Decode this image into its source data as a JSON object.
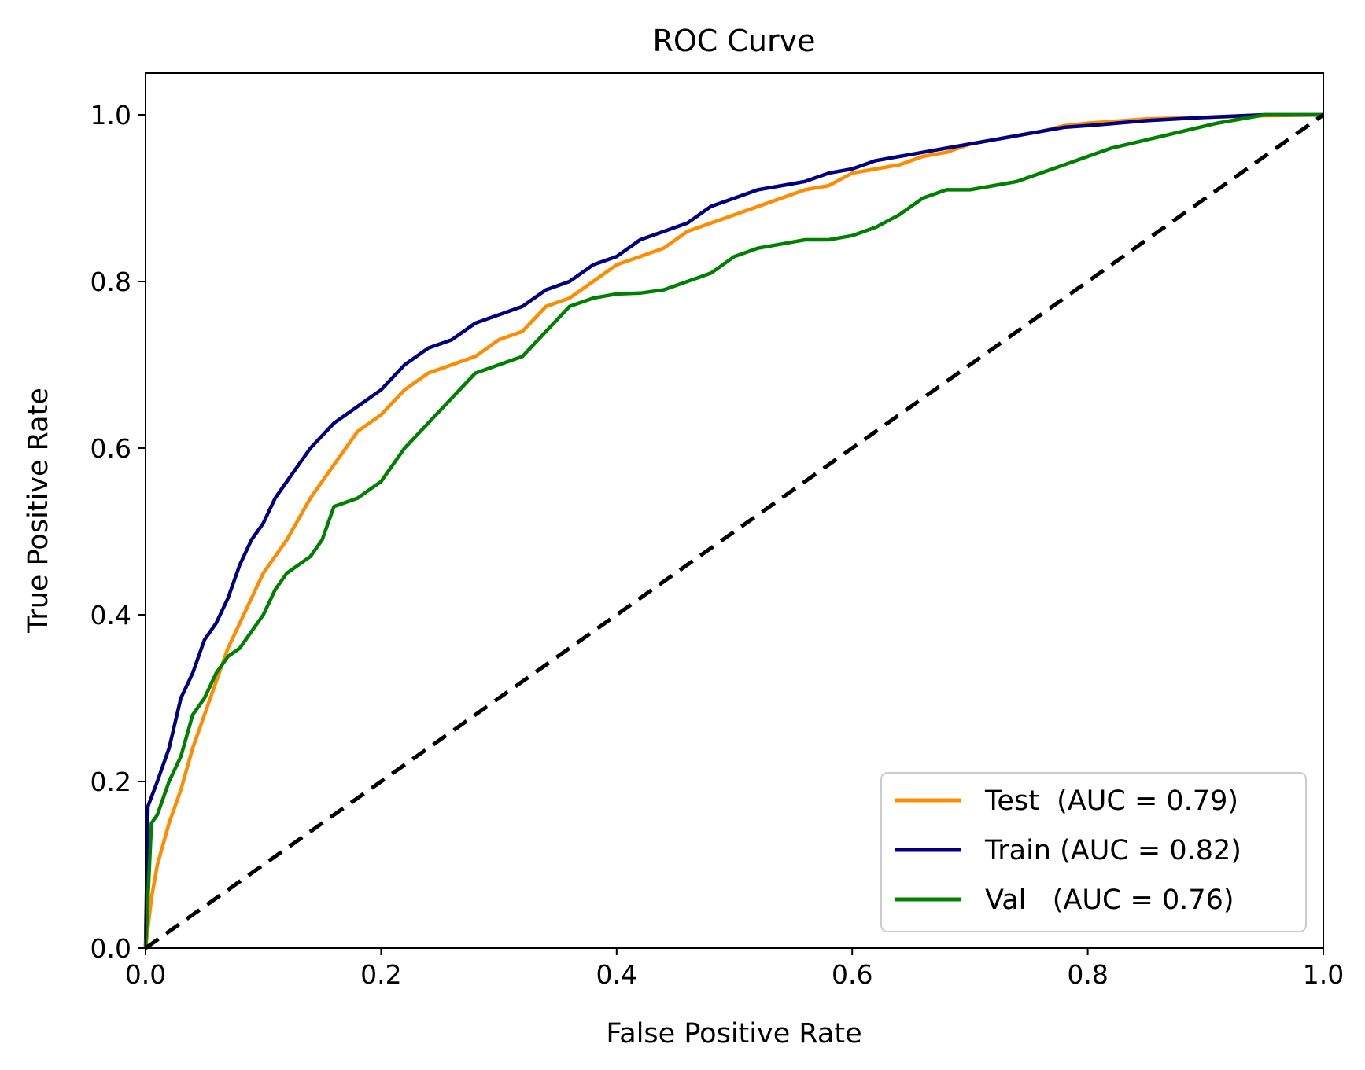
{
  "chart_data": {
    "type": "line",
    "title": "ROC Curve",
    "xlabel": "False Positive Rate",
    "ylabel": "True Positive Rate",
    "xlim": [
      0,
      1
    ],
    "ylim": [
      0,
      1.05
    ],
    "xticks": [
      "0.0",
      "0.2",
      "0.4",
      "0.6",
      "0.8",
      "1.0"
    ],
    "yticks": [
      "0.0",
      "0.2",
      "0.4",
      "0.6",
      "0.8",
      "1.0"
    ],
    "grid": false,
    "legend_position": "lower-right",
    "series": [
      {
        "name": "Test  (AUC = 0.79)",
        "color": "#ff8c00",
        "points": [
          [
            0,
            0
          ],
          [
            0.005,
            0.06
          ],
          [
            0.01,
            0.1
          ],
          [
            0.02,
            0.15
          ],
          [
            0.03,
            0.19
          ],
          [
            0.04,
            0.24
          ],
          [
            0.05,
            0.28
          ],
          [
            0.06,
            0.32
          ],
          [
            0.07,
            0.36
          ],
          [
            0.08,
            0.39
          ],
          [
            0.09,
            0.42
          ],
          [
            0.1,
            0.45
          ],
          [
            0.12,
            0.49
          ],
          [
            0.14,
            0.54
          ],
          [
            0.16,
            0.58
          ],
          [
            0.18,
            0.62
          ],
          [
            0.2,
            0.64
          ],
          [
            0.22,
            0.67
          ],
          [
            0.24,
            0.69
          ],
          [
            0.26,
            0.7
          ],
          [
            0.28,
            0.71
          ],
          [
            0.3,
            0.73
          ],
          [
            0.32,
            0.74
          ],
          [
            0.34,
            0.77
          ],
          [
            0.36,
            0.78
          ],
          [
            0.38,
            0.8
          ],
          [
            0.4,
            0.82
          ],
          [
            0.42,
            0.83
          ],
          [
            0.44,
            0.84
          ],
          [
            0.46,
            0.86
          ],
          [
            0.48,
            0.87
          ],
          [
            0.5,
            0.88
          ],
          [
            0.52,
            0.89
          ],
          [
            0.54,
            0.9
          ],
          [
            0.56,
            0.91
          ],
          [
            0.58,
            0.915
          ],
          [
            0.6,
            0.93
          ],
          [
            0.62,
            0.935
          ],
          [
            0.64,
            0.94
          ],
          [
            0.66,
            0.95
          ],
          [
            0.68,
            0.955
          ],
          [
            0.7,
            0.965
          ],
          [
            0.72,
            0.97
          ],
          [
            0.74,
            0.975
          ],
          [
            0.76,
            0.98
          ],
          [
            0.78,
            0.987
          ],
          [
            0.8,
            0.99
          ],
          [
            0.85,
            0.995
          ],
          [
            0.9,
            0.997
          ],
          [
            0.95,
            0.999
          ],
          [
            1,
            1
          ]
        ]
      },
      {
        "name": "Train (AUC = 0.82)",
        "color": "#000080",
        "points": [
          [
            0,
            0
          ],
          [
            0.002,
            0.17
          ],
          [
            0.01,
            0.2
          ],
          [
            0.02,
            0.24
          ],
          [
            0.03,
            0.3
          ],
          [
            0.04,
            0.33
          ],
          [
            0.05,
            0.37
          ],
          [
            0.06,
            0.39
          ],
          [
            0.07,
            0.42
          ],
          [
            0.08,
            0.46
          ],
          [
            0.09,
            0.49
          ],
          [
            0.1,
            0.51
          ],
          [
            0.11,
            0.54
          ],
          [
            0.12,
            0.56
          ],
          [
            0.13,
            0.58
          ],
          [
            0.14,
            0.6
          ],
          [
            0.16,
            0.63
          ],
          [
            0.18,
            0.65
          ],
          [
            0.2,
            0.67
          ],
          [
            0.22,
            0.7
          ],
          [
            0.24,
            0.72
          ],
          [
            0.26,
            0.73
          ],
          [
            0.28,
            0.75
          ],
          [
            0.3,
            0.76
          ],
          [
            0.32,
            0.77
          ],
          [
            0.34,
            0.79
          ],
          [
            0.36,
            0.8
          ],
          [
            0.38,
            0.82
          ],
          [
            0.4,
            0.83
          ],
          [
            0.42,
            0.85
          ],
          [
            0.44,
            0.86
          ],
          [
            0.46,
            0.87
          ],
          [
            0.48,
            0.89
          ],
          [
            0.5,
            0.9
          ],
          [
            0.52,
            0.91
          ],
          [
            0.54,
            0.915
          ],
          [
            0.56,
            0.92
          ],
          [
            0.58,
            0.93
          ],
          [
            0.6,
            0.935
          ],
          [
            0.62,
            0.945
          ],
          [
            0.64,
            0.95
          ],
          [
            0.66,
            0.955
          ],
          [
            0.68,
            0.96
          ],
          [
            0.7,
            0.965
          ],
          [
            0.72,
            0.97
          ],
          [
            0.74,
            0.975
          ],
          [
            0.76,
            0.98
          ],
          [
            0.78,
            0.985
          ],
          [
            0.8,
            0.987
          ],
          [
            0.85,
            0.993
          ],
          [
            0.9,
            0.997
          ],
          [
            0.95,
            1.0
          ],
          [
            1,
            1
          ]
        ]
      },
      {
        "name": "Val   (AUC = 0.76)",
        "color": "#008000",
        "points": [
          [
            0,
            0
          ],
          [
            0.005,
            0.15
          ],
          [
            0.01,
            0.16
          ],
          [
            0.02,
            0.2
          ],
          [
            0.03,
            0.23
          ],
          [
            0.04,
            0.28
          ],
          [
            0.05,
            0.3
          ],
          [
            0.06,
            0.33
          ],
          [
            0.07,
            0.35
          ],
          [
            0.08,
            0.36
          ],
          [
            0.09,
            0.38
          ],
          [
            0.1,
            0.4
          ],
          [
            0.11,
            0.43
          ],
          [
            0.12,
            0.45
          ],
          [
            0.13,
            0.46
          ],
          [
            0.14,
            0.47
          ],
          [
            0.15,
            0.49
          ],
          [
            0.16,
            0.53
          ],
          [
            0.18,
            0.54
          ],
          [
            0.2,
            0.56
          ],
          [
            0.22,
            0.6
          ],
          [
            0.24,
            0.63
          ],
          [
            0.26,
            0.66
          ],
          [
            0.28,
            0.69
          ],
          [
            0.3,
            0.7
          ],
          [
            0.32,
            0.71
          ],
          [
            0.34,
            0.74
          ],
          [
            0.36,
            0.77
          ],
          [
            0.38,
            0.78
          ],
          [
            0.4,
            0.785
          ],
          [
            0.42,
            0.786
          ],
          [
            0.44,
            0.79
          ],
          [
            0.46,
            0.8
          ],
          [
            0.48,
            0.81
          ],
          [
            0.5,
            0.83
          ],
          [
            0.52,
            0.84
          ],
          [
            0.54,
            0.845
          ],
          [
            0.56,
            0.85
          ],
          [
            0.58,
            0.85
          ],
          [
            0.6,
            0.855
          ],
          [
            0.62,
            0.865
          ],
          [
            0.64,
            0.88
          ],
          [
            0.66,
            0.9
          ],
          [
            0.68,
            0.91
          ],
          [
            0.7,
            0.91
          ],
          [
            0.72,
            0.915
          ],
          [
            0.74,
            0.92
          ],
          [
            0.76,
            0.93
          ],
          [
            0.78,
            0.94
          ],
          [
            0.8,
            0.95
          ],
          [
            0.82,
            0.96
          ],
          [
            0.85,
            0.97
          ],
          [
            0.88,
            0.98
          ],
          [
            0.91,
            0.99
          ],
          [
            0.95,
            1.0
          ],
          [
            1,
            1
          ]
        ]
      },
      {
        "name": "",
        "color": "#000000",
        "dashed": true,
        "points": [
          [
            0,
            0
          ],
          [
            1,
            1
          ]
        ]
      }
    ]
  }
}
